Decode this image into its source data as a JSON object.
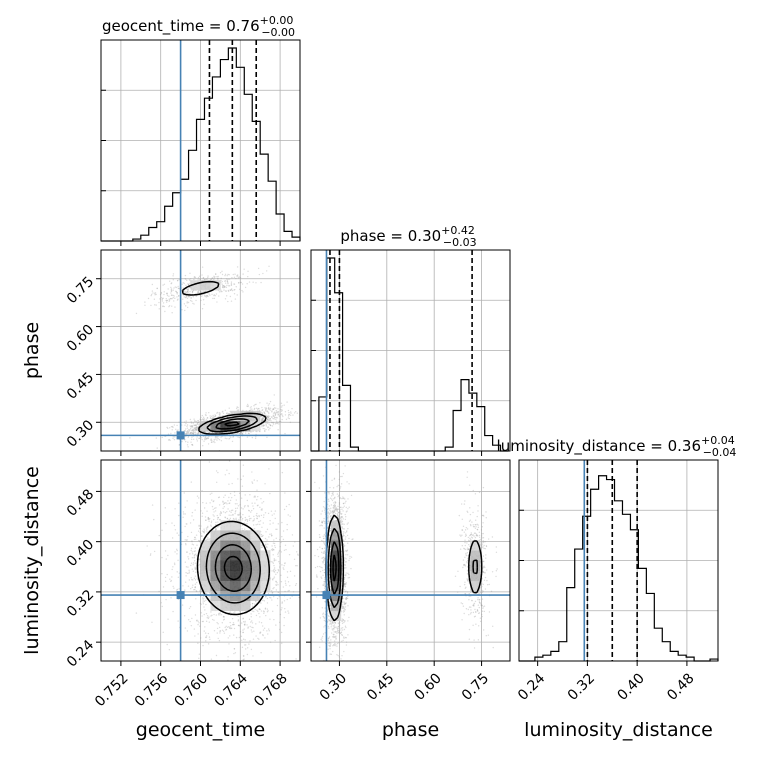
{
  "chart_data": {
    "type": "corner",
    "parameters": [
      {
        "key": "geocent_time",
        "label": "geocent_time",
        "range": [
          0.75,
          0.77
        ],
        "ticks": [
          0.752,
          0.756,
          0.76,
          0.764,
          0.768
        ],
        "tick_labels": [
          "0.752",
          "0.756",
          "0.760",
          "0.764",
          "0.768"
        ],
        "injection": 0.758,
        "quantiles": [
          0.7609,
          0.7632,
          0.7656
        ],
        "title": {
          "main": "geocent_time = 0.76",
          "sup": "+0.00",
          "sub": "−0.00"
        },
        "hist_bins": [
          0.75,
          0.7508,
          0.7516,
          0.7524,
          0.7532,
          0.754,
          0.7548,
          0.7556,
          0.7564,
          0.7572,
          0.758,
          0.7588,
          0.7596,
          0.7604,
          0.7612,
          0.762,
          0.7628,
          0.7636,
          0.7644,
          0.7652,
          0.766,
          0.7668,
          0.7676,
          0.7684,
          0.7692,
          0.77
        ],
        "hist_counts": [
          0.0,
          0.0,
          0.0,
          0.0,
          0.01,
          0.03,
          0.07,
          0.1,
          0.18,
          0.25,
          0.32,
          0.47,
          0.63,
          0.74,
          0.85,
          0.94,
          1.0,
          0.9,
          0.76,
          0.62,
          0.45,
          0.31,
          0.14,
          0.05,
          0.02
        ]
      },
      {
        "key": "phase",
        "label": "phase",
        "range": [
          0.21,
          0.84
        ],
        "ticks": [
          0.3,
          0.45,
          0.6,
          0.75
        ],
        "tick_labels": [
          "0.30",
          "0.45",
          "0.60",
          "0.75"
        ],
        "injection": 0.259,
        "quantiles": [
          0.27,
          0.3,
          0.72
        ],
        "title": {
          "main": "phase = 0.30",
          "sup": "+0.42",
          "sub": "−0.03"
        },
        "hist_bins": [
          0.21,
          0.235,
          0.26,
          0.285,
          0.31,
          0.335,
          0.36,
          0.385,
          0.41,
          0.435,
          0.46,
          0.485,
          0.51,
          0.535,
          0.56,
          0.585,
          0.61,
          0.635,
          0.66,
          0.685,
          0.71,
          0.735,
          0.76,
          0.785,
          0.81,
          0.835
        ],
        "hist_counts": [
          0.0,
          0.28,
          1.0,
          0.82,
          0.34,
          0.02,
          0.0,
          0.0,
          0.0,
          0.0,
          0.0,
          0.0,
          0.0,
          0.0,
          0.0,
          0.0,
          0.0,
          0.02,
          0.21,
          0.37,
          0.3,
          0.23,
          0.08,
          0.03,
          0.0
        ]
      },
      {
        "key": "luminosity_distance",
        "label": "luminosity_distance",
        "range": [
          0.21,
          0.53
        ],
        "ticks": [
          0.24,
          0.32,
          0.4,
          0.48
        ],
        "tick_labels": [
          "0.24",
          "0.32",
          "0.40",
          "0.48"
        ],
        "injection": 0.315,
        "quantiles": [
          0.32,
          0.36,
          0.4
        ],
        "title": {
          "main": "luminosity_distance = 0.36",
          "sup": "+0.04",
          "sub": "−0.04"
        },
        "hist_bins": [
          0.21,
          0.2228,
          0.2356,
          0.2484,
          0.2612,
          0.274,
          0.2868,
          0.2996,
          0.3124,
          0.3252,
          0.338,
          0.3508,
          0.3636,
          0.3764,
          0.3892,
          0.402,
          0.4148,
          0.4276,
          0.4404,
          0.4532,
          0.466,
          0.4788,
          0.4916,
          0.5044,
          0.5172,
          0.53
        ],
        "hist_counts": [
          0.0,
          0.0,
          0.02,
          0.03,
          0.05,
          0.1,
          0.38,
          0.58,
          0.75,
          0.89,
          0.96,
          0.94,
          0.83,
          0.76,
          0.68,
          0.48,
          0.35,
          0.17,
          0.1,
          0.05,
          0.03,
          0.02,
          0.0,
          0.0,
          0.01
        ]
      }
    ],
    "pairs": [
      {
        "x": "geocent_time",
        "y": "phase",
        "modes": [
          {
            "cx": 0.7632,
            "cy": 0.295,
            "sx": 0.0017,
            "sy": 0.016,
            "rho": 0.55,
            "weight": 0.78
          },
          {
            "cx": 0.76,
            "cy": 0.72,
            "sx": 0.0016,
            "sy": 0.018,
            "rho": 0.55,
            "weight": 0.22
          }
        ]
      },
      {
        "x": "geocent_time",
        "y": "luminosity_distance",
        "modes": [
          {
            "cx": 0.7633,
            "cy": 0.358,
            "sx": 0.0018,
            "sy": 0.037,
            "rho": -0.05,
            "weight": 1.0
          }
        ]
      },
      {
        "x": "phase",
        "y": "luminosity_distance",
        "modes": [
          {
            "cx": 0.285,
            "cy": 0.358,
            "sx": 0.013,
            "sy": 0.042,
            "rho": 0.0,
            "weight": 0.78
          },
          {
            "cx": 0.73,
            "cy": 0.36,
            "sx": 0.014,
            "sy": 0.03,
            "rho": 0.0,
            "weight": 0.22
          }
        ]
      }
    ],
    "contour_levels_sigma": [
      0.5,
      1.0,
      1.5,
      2.0
    ],
    "grid": true,
    "colors": {
      "injection": "#4682b4",
      "hist": "#000000",
      "grid": "#b0b0b0",
      "points": "#9a9a9a"
    }
  }
}
